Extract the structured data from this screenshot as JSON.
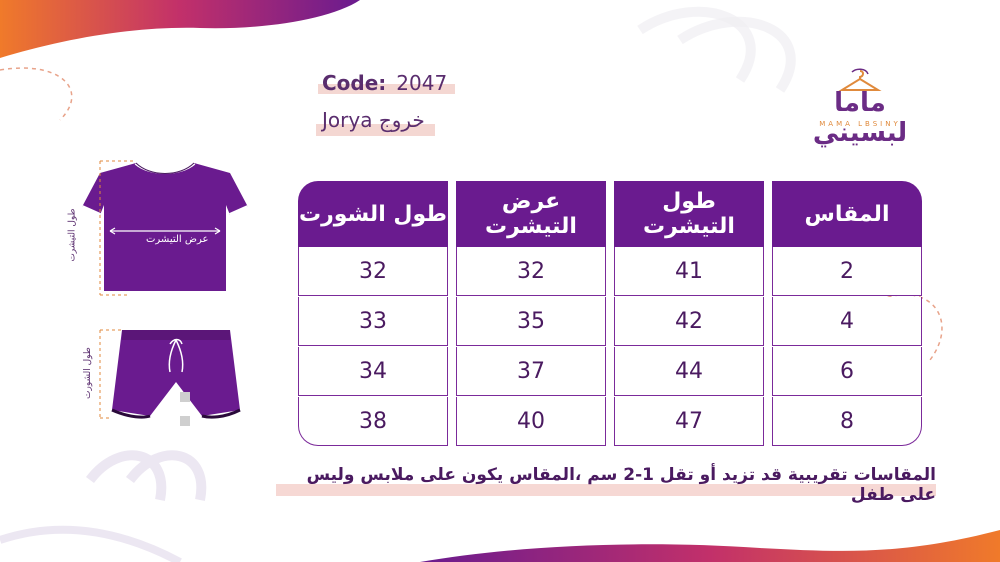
{
  "header": {
    "code_label": "Code:",
    "code_value": "2047",
    "product_name": "Jorya خروج"
  },
  "logo": {
    "arabic": "ماما لبسيني",
    "english": "MAMA LBSINY"
  },
  "table": {
    "headers": [
      "طول الشورت",
      "عرض التيشرت",
      "طول التيشرت",
      "المقاس"
    ],
    "rows": [
      [
        "32",
        "32",
        "41",
        "2"
      ],
      [
        "33",
        "35",
        "42",
        "4"
      ],
      [
        "34",
        "37",
        "44",
        "6"
      ],
      [
        "38",
        "40",
        "47",
        "8"
      ]
    ]
  },
  "diagram": {
    "tshirt_width_label": "عرض التيشرت",
    "tshirt_length_label": "طول التيشرت",
    "shorts_length_label": "طول الشورت"
  },
  "note": "المقاسات تقريبية قد تزيد أو تقل 1-2 سم ،المقاس يكون على ملابس وليس على طفل",
  "colors": {
    "primary_purple": "#6a1b8f",
    "accent_orange": "#f07a2a",
    "highlight_pink": "#f4d7d2"
  }
}
